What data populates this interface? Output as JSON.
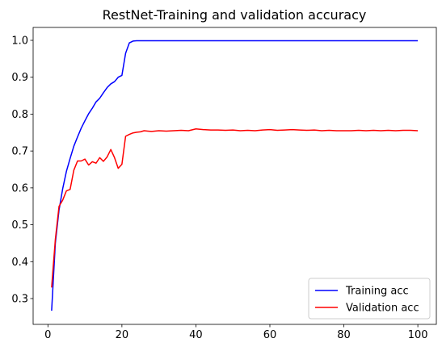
{
  "chart_data": {
    "type": "line",
    "title": "RestNet-Training and validation accuracy",
    "xlabel": "",
    "ylabel": "",
    "xlim": [
      -4,
      105
    ],
    "ylim": [
      0.23,
      1.035
    ],
    "xticks": [
      0,
      20,
      40,
      60,
      80,
      100
    ],
    "yticks": [
      0.3,
      0.4,
      0.5,
      0.6,
      0.7,
      0.8,
      0.9,
      1.0
    ],
    "legend_position": "lower-right",
    "grid": false,
    "series": [
      {
        "name": "Training acc",
        "color": "#0000ff",
        "x": [
          1,
          2,
          3,
          4,
          5,
          6,
          7,
          8,
          9,
          10,
          11,
          12,
          13,
          14,
          15,
          16,
          17,
          18,
          19,
          20,
          21,
          22,
          23,
          24,
          25,
          30,
          40,
          50,
          60,
          70,
          80,
          90,
          100
        ],
        "values": [
          0.267,
          0.45,
          0.54,
          0.598,
          0.645,
          0.68,
          0.713,
          0.738,
          0.762,
          0.782,
          0.801,
          0.816,
          0.833,
          0.843,
          0.858,
          0.872,
          0.882,
          0.888,
          0.9,
          0.905,
          0.965,
          0.993,
          0.998,
          0.999,
          0.999,
          0.999,
          0.999,
          0.999,
          0.999,
          0.999,
          0.999,
          0.999,
          0.999
        ]
      },
      {
        "name": "Validation acc",
        "color": "#ff0000",
        "x": [
          1,
          2,
          3,
          4,
          5,
          6,
          7,
          8,
          9,
          10,
          11,
          12,
          13,
          14,
          15,
          16,
          17,
          18,
          19,
          20,
          21,
          22,
          23,
          24,
          25,
          26,
          27,
          28,
          30,
          32,
          34,
          36,
          38,
          40,
          42,
          44,
          46,
          48,
          50,
          52,
          54,
          56,
          58,
          60,
          62,
          64,
          66,
          68,
          70,
          72,
          74,
          76,
          78,
          80,
          82,
          84,
          86,
          88,
          90,
          92,
          94,
          96,
          98,
          100
        ],
        "values": [
          0.33,
          0.46,
          0.55,
          0.567,
          0.592,
          0.596,
          0.648,
          0.673,
          0.673,
          0.678,
          0.662,
          0.671,
          0.667,
          0.682,
          0.672,
          0.684,
          0.704,
          0.682,
          0.653,
          0.664,
          0.74,
          0.745,
          0.749,
          0.751,
          0.752,
          0.755,
          0.754,
          0.753,
          0.755,
          0.754,
          0.755,
          0.756,
          0.755,
          0.76,
          0.758,
          0.757,
          0.757,
          0.756,
          0.757,
          0.755,
          0.756,
          0.755,
          0.757,
          0.758,
          0.756,
          0.757,
          0.758,
          0.757,
          0.756,
          0.757,
          0.755,
          0.756,
          0.755,
          0.755,
          0.755,
          0.756,
          0.755,
          0.756,
          0.755,
          0.756,
          0.755,
          0.756,
          0.756,
          0.755
        ]
      }
    ]
  }
}
